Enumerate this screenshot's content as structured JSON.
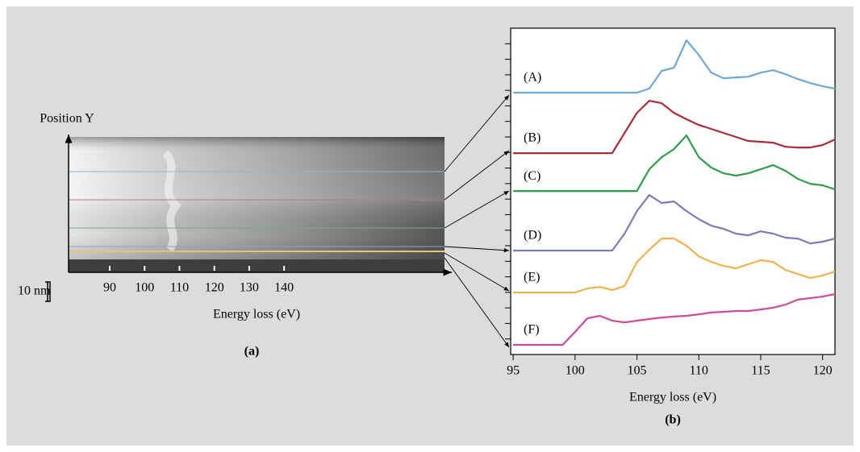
{
  "chart_data": [
    {
      "type": "image",
      "title": "(a)",
      "y_label": "Position Y",
      "x_label": "Energy loss (eV)",
      "scale_bar": "10 nm",
      "xlim": [
        78.2,
        186
      ],
      "xticks": [
        90,
        100,
        110,
        120,
        130,
        140
      ]
    },
    {
      "type": "line",
      "title": "(b)",
      "x_label": "Energy loss (eV)",
      "xlim": [
        94.8,
        121
      ],
      "xticks": [
        95,
        100,
        105,
        110,
        115,
        120
      ],
      "ylim": [
        0,
        21
      ],
      "yticks": [
        1,
        2,
        3,
        4,
        5,
        6,
        7,
        8,
        9,
        10,
        11,
        12,
        13,
        14,
        15,
        16,
        17,
        18,
        19,
        20
      ],
      "x": [
        95,
        96,
        97,
        98,
        99,
        100,
        101,
        102,
        103,
        104,
        105,
        106,
        107,
        108,
        109,
        110,
        111,
        112,
        113,
        114,
        115,
        116,
        117,
        118,
        119,
        120,
        121
      ],
      "series": [
        {
          "name": "(A)",
          "color": "#6fa8d6",
          "values": [
            16.85,
            16.85,
            16.85,
            16.85,
            16.85,
            16.85,
            16.85,
            16.85,
            16.85,
            16.85,
            16.85,
            17.11,
            18.25,
            18.46,
            20.22,
            19.28,
            18.14,
            17.78,
            17.83,
            17.88,
            18.14,
            18.3,
            18.04,
            17.73,
            17.47,
            17.26,
            17.11
          ]
        },
        {
          "name": "(B)",
          "color": "#b0293b",
          "values": [
            12.96,
            12.96,
            12.96,
            12.96,
            12.96,
            12.96,
            12.96,
            12.96,
            12.96,
            14.26,
            15.55,
            16.33,
            16.17,
            15.55,
            15.14,
            14.77,
            14.52,
            14.26,
            14.0,
            13.74,
            13.69,
            13.63,
            13.37,
            13.32,
            13.32,
            13.48,
            13.84
          ]
        },
        {
          "name": "(C)",
          "color": "#2e9e48",
          "values": [
            10.52,
            10.52,
            10.52,
            10.52,
            10.52,
            10.52,
            10.52,
            10.52,
            10.52,
            10.52,
            10.52,
            11.92,
            12.7,
            13.22,
            14.1,
            12.7,
            12.03,
            11.66,
            11.51,
            11.66,
            11.92,
            12.19,
            11.82,
            11.3,
            10.99,
            10.89,
            10.63
          ]
        },
        {
          "name": "(D)",
          "color": "#7b7bb8",
          "values": [
            6.69,
            6.69,
            6.69,
            6.69,
            6.69,
            6.69,
            6.69,
            6.69,
            6.69,
            7.78,
            9.23,
            10.26,
            9.75,
            9.85,
            9.23,
            8.71,
            8.29,
            8.09,
            7.78,
            7.67,
            7.93,
            7.78,
            7.52,
            7.46,
            7.15,
            7.26,
            7.46
          ]
        },
        {
          "name": "(E)",
          "color": "#f0b24e",
          "values": [
            3.99,
            3.99,
            3.99,
            3.99,
            3.99,
            3.99,
            4.25,
            4.35,
            4.15,
            4.41,
            5.96,
            6.74,
            7.46,
            7.46,
            7.0,
            6.32,
            5.96,
            5.7,
            5.55,
            5.81,
            6.07,
            5.96,
            5.44,
            5.18,
            4.92,
            5.08,
            5.34
          ]
        },
        {
          "name": "(F)",
          "color": "#d04a9a",
          "values": [
            0.62,
            0.62,
            0.62,
            0.62,
            0.62,
            1.45,
            2.33,
            2.49,
            2.18,
            2.07,
            2.18,
            2.28,
            2.38,
            2.44,
            2.49,
            2.59,
            2.7,
            2.75,
            2.8,
            2.8,
            2.9,
            3.01,
            3.21,
            3.53,
            3.63,
            3.73,
            3.89
          ]
        }
      ]
    }
  ]
}
